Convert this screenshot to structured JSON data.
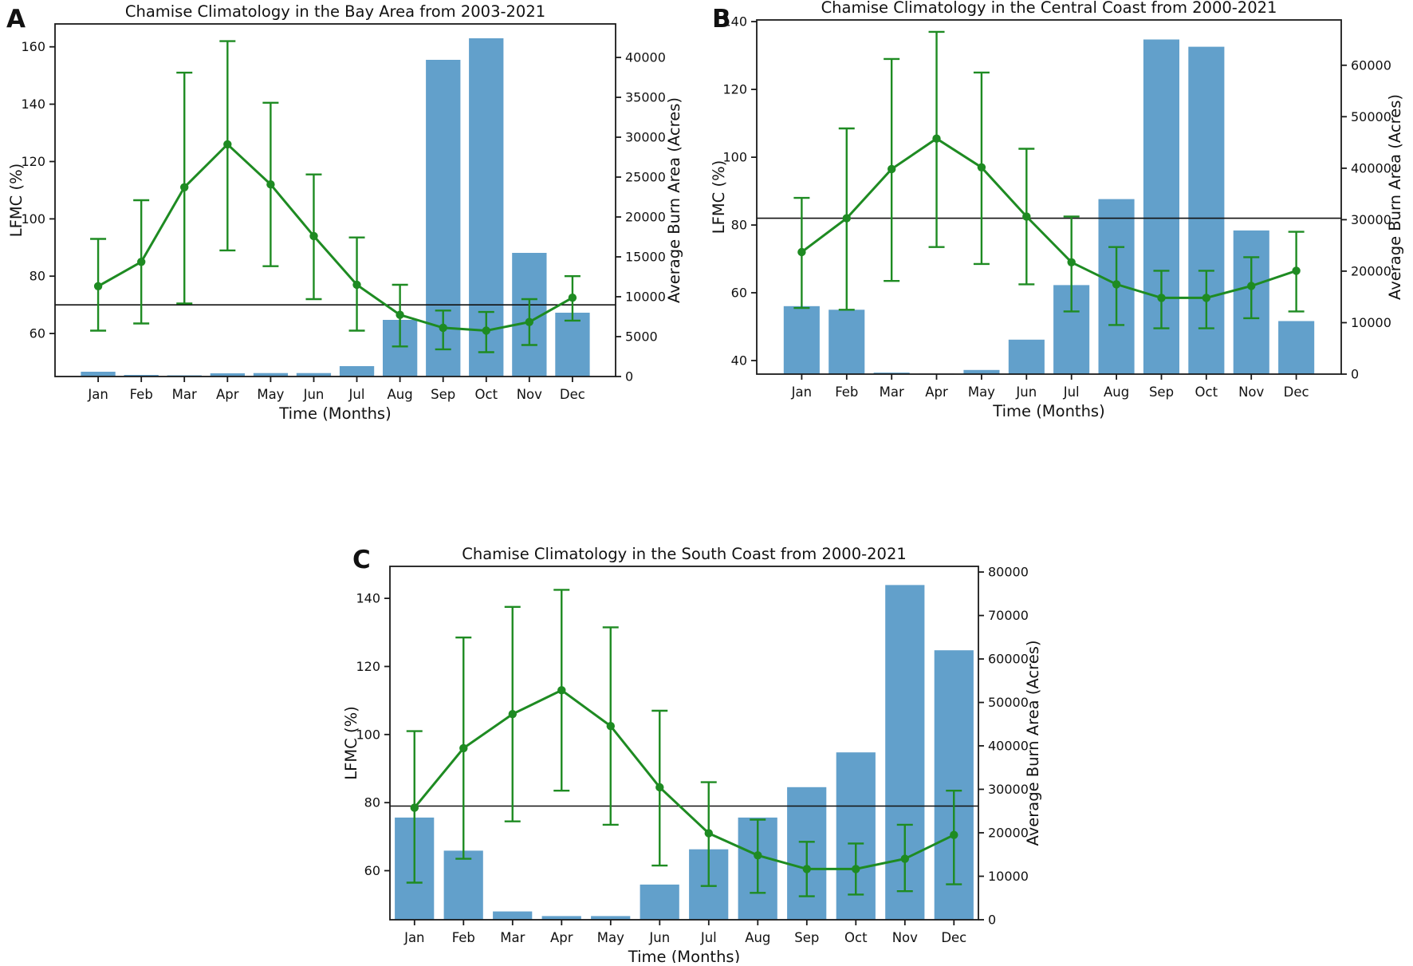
{
  "figure": {
    "background": "#ffffff",
    "months": [
      "Jan",
      "Feb",
      "Mar",
      "Apr",
      "May",
      "Jun",
      "Jul",
      "Aug",
      "Sep",
      "Oct",
      "Nov",
      "Dec"
    ],
    "x_axis_label": "Time (Months)",
    "lfmc_axis_label": "LFMC (%)",
    "burn_axis_label": "Average Burn Area (Acres)",
    "colors": {
      "bar_fill": "#62A0CB",
      "line_green": "#1E8B22",
      "threshold": "#111111",
      "spine": "#1a1a1a",
      "text": "#111111"
    }
  },
  "chart_data": [
    {
      "panel": "A",
      "type": "line+bar",
      "title": "Chamise Climatology in the Bay Area from 2003-2021",
      "categories": [
        "Jan",
        "Feb",
        "Mar",
        "Apr",
        "May",
        "Jun",
        "Jul",
        "Aug",
        "Sep",
        "Oct",
        "Nov",
        "Dec"
      ],
      "xlabel": "Time (Months)",
      "ylabel_left": "LFMC (%)",
      "ylabel_right": "Average Burn Area (Acres)",
      "grid": false,
      "legend": "none",
      "threshold_lfmc": 70,
      "left_domain": [
        45,
        168
      ],
      "right_domain": [
        0,
        44200
      ],
      "left_ticks": [
        60,
        80,
        100,
        120,
        140,
        160
      ],
      "right_ticks": [
        0,
        5000,
        10000,
        15000,
        20000,
        25000,
        30000,
        35000,
        40000
      ],
      "series": [
        {
          "name": "LFMC (%)",
          "type": "line",
          "axis": "left",
          "values": [
            76.5,
            85,
            111,
            126,
            112,
            94,
            77,
            66.5,
            62,
            61,
            64,
            72.5
          ],
          "err_low": [
            61,
            63.5,
            70.5,
            89,
            83.5,
            72,
            61,
            55.5,
            54.5,
            53.5,
            56,
            64.5
          ],
          "err_high": [
            93,
            106.5,
            151,
            162,
            140.5,
            115.5,
            93.5,
            77,
            68,
            67.5,
            72,
            80
          ]
        },
        {
          "name": "Average Burn Area (Acres)",
          "type": "bar",
          "axis": "right",
          "values": [
            600,
            200,
            150,
            400,
            430,
            430,
            1300,
            7100,
            39700,
            42400,
            15500,
            8000
          ]
        }
      ]
    },
    {
      "panel": "B",
      "type": "line+bar",
      "title": "Chamise Climatology in the Central Coast from 2000-2021",
      "categories": [
        "Jan",
        "Feb",
        "Mar",
        "Apr",
        "May",
        "Jun",
        "Jul",
        "Aug",
        "Sep",
        "Oct",
        "Nov",
        "Dec"
      ],
      "xlabel": "Time (Months)",
      "ylabel_left": "LFMC (%)",
      "ylabel_right": "Average Burn Area (Acres)",
      "grid": false,
      "legend": "none",
      "threshold_lfmc": 82,
      "left_domain": [
        36,
        140.5
      ],
      "right_domain": [
        0,
        68800
      ],
      "left_ticks": [
        40,
        60,
        80,
        100,
        120,
        140
      ],
      "right_ticks": [
        0,
        10000,
        20000,
        30000,
        40000,
        50000,
        60000
      ],
      "series": [
        {
          "name": "LFMC (%)",
          "type": "line",
          "axis": "left",
          "values": [
            72,
            82,
            96.5,
            105.5,
            97,
            82.5,
            69,
            62.5,
            58.5,
            58.5,
            62,
            66.5
          ],
          "err_low": [
            55.5,
            55,
            63.5,
            73.5,
            68.5,
            62.5,
            54.5,
            50.5,
            49.5,
            49.5,
            52.5,
            54.5
          ],
          "err_high": [
            88,
            108.5,
            129,
            137,
            125,
            102.5,
            82.5,
            73.5,
            66.5,
            66.5,
            70.5,
            78
          ]
        },
        {
          "name": "Average Burn Area (Acres)",
          "type": "bar",
          "axis": "right",
          "values": [
            13200,
            12500,
            300,
            100,
            800,
            6700,
            17300,
            34000,
            65000,
            63600,
            27900,
            10300
          ]
        }
      ]
    },
    {
      "panel": "C",
      "type": "line+bar",
      "title": "Chamise Climatology in the South Coast from 2000-2021",
      "categories": [
        "Jan",
        "Feb",
        "Mar",
        "Apr",
        "May",
        "Jun",
        "Jul",
        "Aug",
        "Sep",
        "Oct",
        "Nov",
        "Dec"
      ],
      "xlabel": "Time (Months)",
      "ylabel_left": "LFMC (%)",
      "ylabel_right": "Average Burn Area (Acres)",
      "grid": false,
      "legend": "none",
      "threshold_lfmc": 79,
      "left_domain": [
        45.6,
        149.4
      ],
      "right_domain": [
        0,
        81300
      ],
      "left_ticks": [
        60,
        80,
        100,
        120,
        140
      ],
      "right_ticks": [
        0,
        10000,
        20000,
        30000,
        40000,
        50000,
        60000,
        70000,
        80000
      ],
      "series": [
        {
          "name": "LFMC (%)",
          "type": "line",
          "axis": "left",
          "values": [
            78.5,
            96,
            106,
            113,
            102.5,
            84.5,
            71,
            64.5,
            60.5,
            60.5,
            63.5,
            70.5
          ],
          "err_low": [
            56.5,
            63.5,
            74.5,
            83.5,
            73.5,
            61.5,
            55.5,
            53.5,
            52.5,
            53,
            54,
            56
          ],
          "err_high": [
            101,
            128.5,
            137.5,
            142.5,
            131.5,
            107,
            86,
            75,
            68.5,
            68,
            73.5,
            83.5
          ]
        },
        {
          "name": "Average Burn Area (Acres)",
          "type": "bar",
          "axis": "right",
          "values": [
            23500,
            15900,
            1900,
            850,
            850,
            8100,
            16200,
            23500,
            30500,
            38500,
            77000,
            62000
          ]
        }
      ]
    }
  ]
}
